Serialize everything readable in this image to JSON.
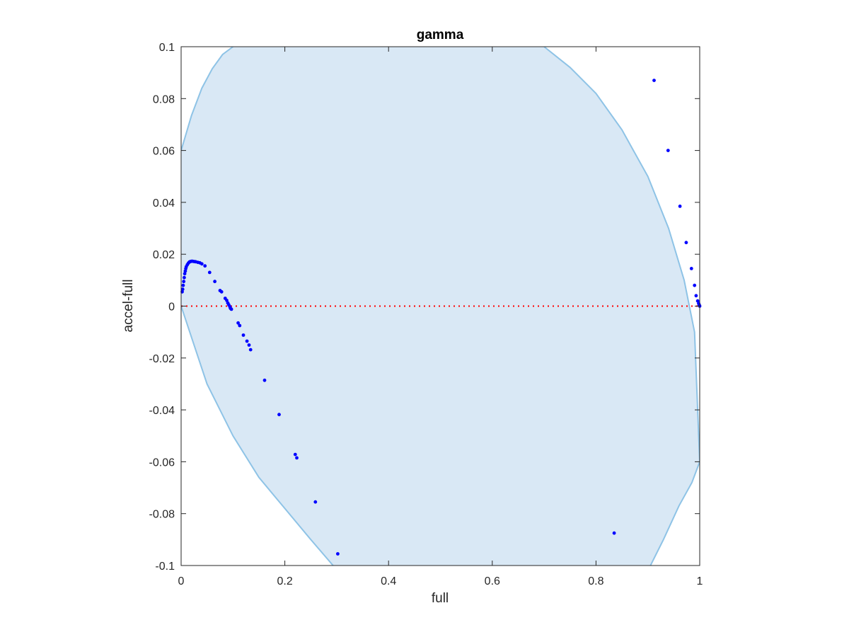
{
  "chart_data": {
    "type": "scatter",
    "title": "gamma",
    "xlabel": "full",
    "ylabel": "accel-full",
    "xlim": [
      0,
      1
    ],
    "ylim": [
      -0.1,
      0.1
    ],
    "x_ticks": [
      "0",
      "0.2",
      "0.4",
      "0.6",
      "0.8",
      "1"
    ],
    "x_tick_values": [
      0,
      0.2,
      0.4,
      0.6,
      0.8,
      1
    ],
    "y_ticks": [
      "-0.1",
      "-0.08",
      "-0.06",
      "-0.04",
      "-0.02",
      "0",
      "0.02",
      "0.04",
      "0.06",
      "0.08",
      "0.1"
    ],
    "y_tick_values": [
      -0.1,
      -0.08,
      -0.06,
      -0.04,
      -0.02,
      0,
      0.02,
      0.04,
      0.06,
      0.08,
      0.1
    ],
    "grid": false,
    "reference_line": {
      "y": 0,
      "style": "dotted",
      "color": "#ff0000"
    },
    "region": {
      "fill_color": "#d9e8f5",
      "edge_color": "#8ec3e6",
      "upper_edge": {
        "x": [
          0,
          0.02,
          0.04,
          0.06,
          0.08,
          0.1
        ],
        "y": [
          0.06,
          0.0735,
          0.084,
          0.0915,
          0.097,
          0.1
        ]
      },
      "right_edge": {
        "x": [
          0.7,
          0.75,
          0.8,
          0.85,
          0.9,
          0.94,
          0.97,
          0.99,
          1.0
        ],
        "y": [
          0.1,
          0.092,
          0.082,
          0.068,
          0.05,
          0.03,
          0.01,
          -0.01,
          -0.06
        ]
      },
      "lower_edge": {
        "x": [
          0.0,
          0.05,
          0.1,
          0.15,
          0.2,
          0.25,
          0.293
        ],
        "y": [
          0.0,
          -0.03,
          -0.05,
          -0.066,
          -0.078,
          -0.09,
          -0.1
        ]
      },
      "bottom_right_edge": {
        "x": [
          0.905,
          0.93,
          0.96,
          0.985,
          1.0
        ],
        "y": [
          -0.1,
          -0.09,
          -0.077,
          -0.068,
          -0.06
        ]
      }
    },
    "series": [
      {
        "marker_color": "#0000ff",
        "x": [
          0.002,
          0.003,
          0.004,
          0.005,
          0.006,
          0.007,
          0.008,
          0.009,
          0.01,
          0.012,
          0.014,
          0.016,
          0.018,
          0.02,
          0.022,
          0.025,
          0.028,
          0.032,
          0.036,
          0.04,
          0.046,
          0.055,
          0.065,
          0.075,
          0.078,
          0.085,
          0.088,
          0.09,
          0.092,
          0.094,
          0.095,
          0.096,
          0.097,
          0.11,
          0.113,
          0.12,
          0.127,
          0.131,
          0.134,
          0.161,
          0.189,
          0.22,
          0.223,
          0.259,
          0.302,
          0.835,
          0.912,
          0.939,
          0.962,
          0.974,
          0.984,
          0.99,
          0.993,
          0.996,
          0.998,
          0.999,
          1.0
        ],
        "y": [
          0.0055,
          0.0065,
          0.008,
          0.0095,
          0.011,
          0.0125,
          0.0135,
          0.0145,
          0.0152,
          0.016,
          0.0166,
          0.017,
          0.0172,
          0.0173,
          0.0173,
          0.0172,
          0.0171,
          0.0169,
          0.0167,
          0.0163,
          0.0155,
          0.013,
          0.0095,
          0.006,
          0.0055,
          0.003,
          0.0022,
          0.0012,
          0.0005,
          -0.0002,
          -0.0008,
          -0.001,
          -0.0012,
          -0.0065,
          -0.0075,
          -0.0112,
          -0.0135,
          -0.015,
          -0.0168,
          -0.0286,
          -0.0418,
          -0.0572,
          -0.0585,
          -0.0755,
          -0.0955,
          -0.0875,
          0.087,
          0.06,
          0.0385,
          0.0245,
          0.0145,
          0.008,
          0.004,
          0.002,
          0.001,
          0.0005,
          0.0
        ]
      }
    ]
  }
}
